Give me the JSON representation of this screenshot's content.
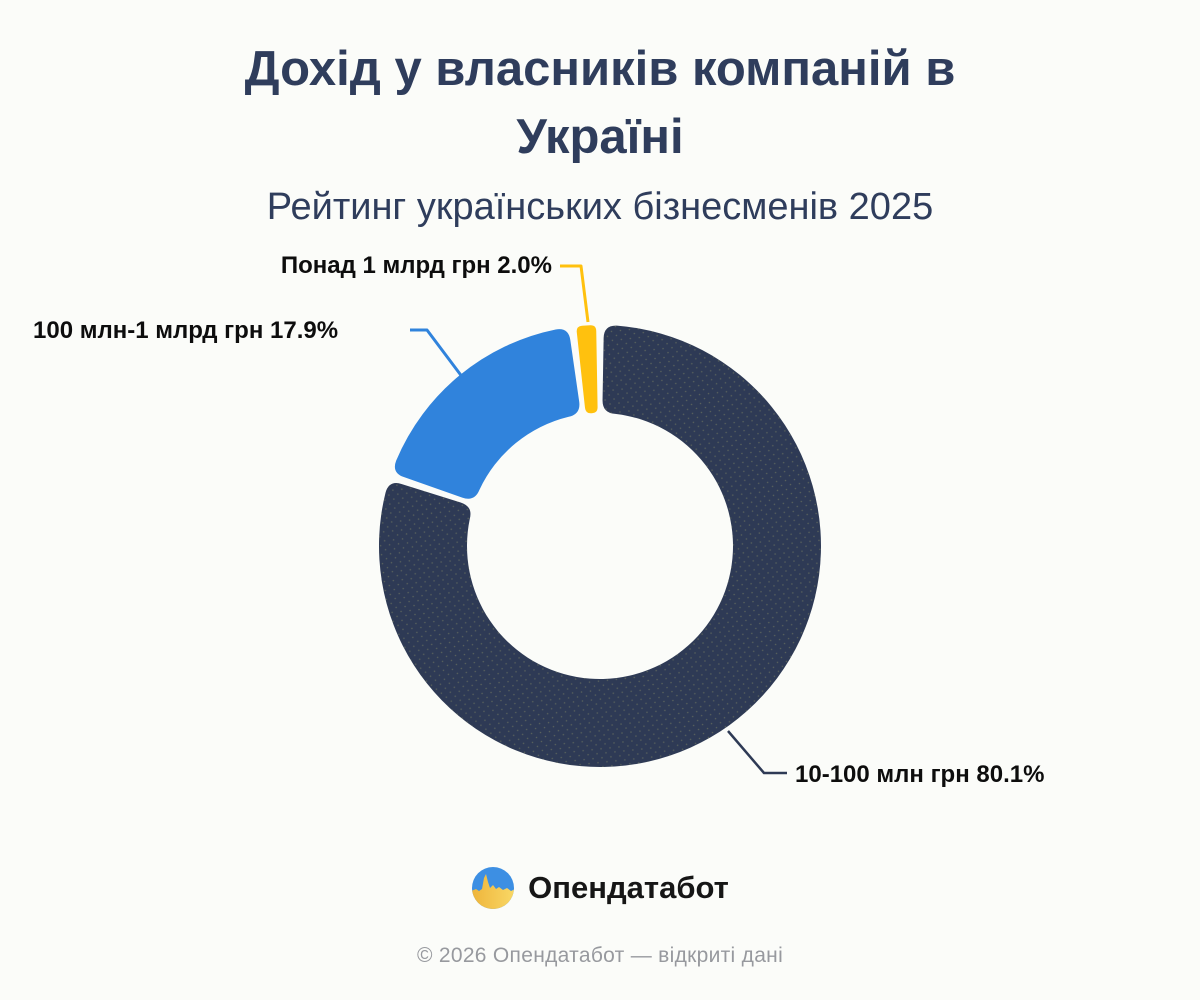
{
  "header": {
    "title": "Дохід у власників компаній в Україні",
    "subtitle": "Рейтинг українських бізнесменів 2025"
  },
  "chart_data": {
    "type": "pie",
    "donut": true,
    "title": "Дохід у власників компаній в Україні",
    "subtitle": "Рейтинг українських бізнесменів 2025",
    "unit": "percent",
    "start_angle_deg": 0,
    "direction": "clockwise",
    "slices": [
      {
        "label": "10-100 млн грн",
        "value": 80.1,
        "color": "#2e3a55",
        "textured": true
      },
      {
        "label": "100 млн-1 млрд грн",
        "value": 17.9,
        "color": "#3083dc",
        "textured": false
      },
      {
        "label": "Понад 1 млрд грн",
        "value": 2.0,
        "color": "#ffc10e",
        "textured": false
      }
    ]
  },
  "colors": {
    "background": "#fbfcf9",
    "title": "#2f3d5c",
    "label_text": "#0d0d0d",
    "copyright_text": "#97999e",
    "logo_blue": "#3d8fe3",
    "logo_yellow": "#f5c44e"
  },
  "footer": {
    "logo_text": "Опендатабот",
    "copyright": "© 2026 Опендатабот — відкриті дані"
  }
}
